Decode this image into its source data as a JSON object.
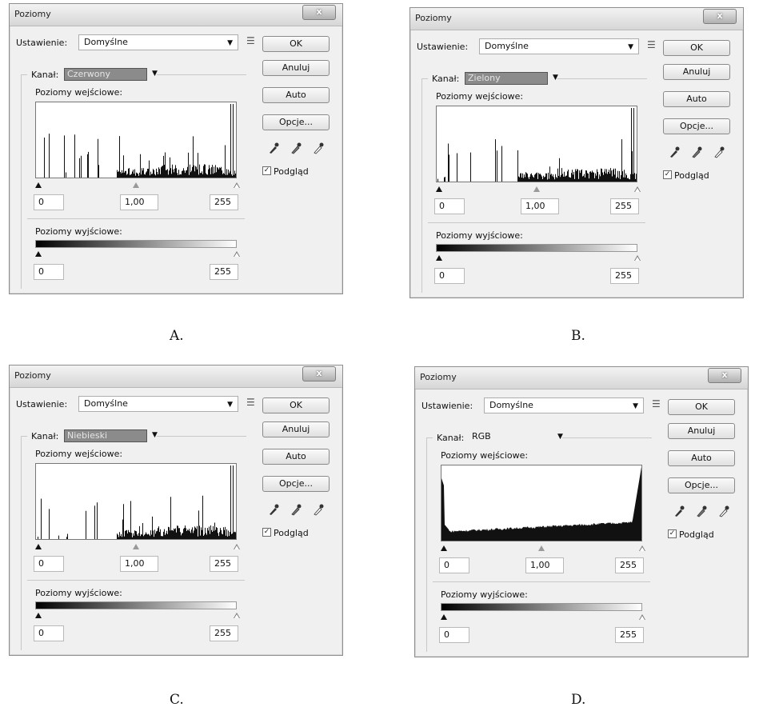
{
  "dialogs": [
    {
      "caption": "A.",
      "title": "Poziomy",
      "close_label": "x",
      "preset_label": "Ustawienie:",
      "preset_value": "Domyślne",
      "channel_label": "Kanał:",
      "channel_value": "Czerwony",
      "channel_highlighted": true,
      "input_levels_label": "Poziomy wejściowe:",
      "input_black": "0",
      "input_gamma": "1,00",
      "input_white": "255",
      "output_levels_label": "Poziomy wyjściowe:",
      "output_black": "0",
      "output_white": "255",
      "buttons": [
        "OK",
        "Anuluj",
        "Auto",
        "Opcje..."
      ],
      "preview_label": "Podgląd",
      "preview_checked": true,
      "histogram_style": "sparse"
    },
    {
      "caption": "B.",
      "title": "Poziomy",
      "close_label": "x",
      "preset_label": "Ustawienie:",
      "preset_value": "Domyślne",
      "channel_label": "Kanał:",
      "channel_value": "Zielony",
      "channel_highlighted": true,
      "input_levels_label": "Poziomy wejściowe:",
      "input_black": "0",
      "input_gamma": "1,00",
      "input_white": "255",
      "output_levels_label": "Poziomy wyjściowe:",
      "output_black": "0",
      "output_white": "255",
      "buttons": [
        "OK",
        "Anuluj",
        "Auto",
        "Opcje..."
      ],
      "preview_label": "Podgląd",
      "preview_checked": true,
      "histogram_style": "sparse"
    },
    {
      "caption": "C.",
      "title": "Poziomy",
      "close_label": "x",
      "preset_label": "Ustawienie:",
      "preset_value": "Domyślne",
      "channel_label": "Kanał:",
      "channel_value": "Niebieski",
      "channel_highlighted": true,
      "input_levels_label": "Poziomy wejściowe:",
      "input_black": "0",
      "input_gamma": "1,00",
      "input_white": "255",
      "output_levels_label": "Poziomy wyjściowe:",
      "output_black": "0",
      "output_white": "255",
      "buttons": [
        "OK",
        "Anuluj",
        "Auto",
        "Opcje..."
      ],
      "preview_label": "Podgląd",
      "preview_checked": true,
      "histogram_style": "sparse"
    },
    {
      "caption": "D.",
      "title": "Poziomy",
      "close_label": "x",
      "preset_label": "Ustawienie:",
      "preset_value": "Domyślne",
      "channel_label": "Kanał:",
      "channel_value": "RGB",
      "channel_highlighted": false,
      "input_levels_label": "Poziomy wejściowe:",
      "input_black": "0",
      "input_gamma": "1,00",
      "input_white": "255",
      "output_levels_label": "Poziomy wyjściowe:",
      "output_black": "0",
      "output_white": "255",
      "buttons": [
        "OK",
        "Anuluj",
        "Auto",
        "Opcje..."
      ],
      "preview_label": "Podgląd",
      "preview_checked": true,
      "histogram_style": "dense"
    }
  ]
}
